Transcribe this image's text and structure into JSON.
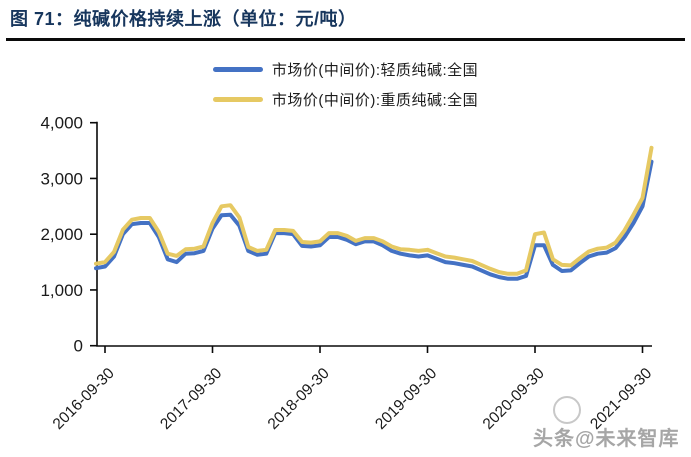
{
  "figure": {
    "title": "图 71：纯碱价格持续上涨（单位：元/吨）"
  },
  "legend": [
    {
      "label": "市场价(中间价):轻质纯碱:全国",
      "color": "#4472C4"
    },
    {
      "label": "市场价(中间价):重质纯碱:全国",
      "color": "#E6C963"
    }
  ],
  "watermark": {
    "text": "头条@未来智库"
  },
  "colors": {
    "title": "#17365d",
    "axis": "#0a0a0a",
    "tick_label": "#1a1a1a",
    "series_light": "#4472C4",
    "series_heavy": "#E6C963"
  },
  "chart_data": {
    "type": "line",
    "title": "纯碱价格持续上涨",
    "unit": "元/吨",
    "ylabel": "",
    "xlabel": "",
    "ylim": [
      0,
      4000
    ],
    "grid": false,
    "legend_position": "top",
    "x_tick_labels": [
      "2016-09-30",
      "2017-09-30",
      "2018-09-30",
      "2019-09-30",
      "2020-09-30",
      "2021-09-30"
    ],
    "y_ticks": [
      {
        "value": 0,
        "label": "0"
      },
      {
        "value": 1000,
        "label": "1,000"
      },
      {
        "value": 2000,
        "label": "2,000"
      },
      {
        "value": 3000,
        "label": "3,000"
      },
      {
        "value": 4000,
        "label": "4,000"
      }
    ],
    "x": [
      "2016-08",
      "2016-09",
      "2016-10",
      "2016-11",
      "2016-12",
      "2017-01",
      "2017-02",
      "2017-03",
      "2017-04",
      "2017-05",
      "2017-06",
      "2017-07",
      "2017-08",
      "2017-09",
      "2017-10",
      "2017-11",
      "2017-12",
      "2018-01",
      "2018-02",
      "2018-03",
      "2018-04",
      "2018-05",
      "2018-06",
      "2018-07",
      "2018-08",
      "2018-09",
      "2018-10",
      "2018-11",
      "2018-12",
      "2019-01",
      "2019-02",
      "2019-03",
      "2019-04",
      "2019-05",
      "2019-06",
      "2019-07",
      "2019-08",
      "2019-09",
      "2019-10",
      "2019-11",
      "2019-12",
      "2020-01",
      "2020-02",
      "2020-03",
      "2020-04",
      "2020-05",
      "2020-06",
      "2020-07",
      "2020-08",
      "2020-09",
      "2020-10",
      "2020-11",
      "2020-12",
      "2021-01",
      "2021-02",
      "2021-03",
      "2021-04",
      "2021-05",
      "2021-06",
      "2021-07",
      "2021-08",
      "2021-09",
      "2021-10"
    ],
    "series": [
      {
        "id": "light",
        "name": "市场价(中间价):轻质纯碱:全国",
        "color": "#4472C4",
        "values": [
          1390,
          1420,
          1600,
          2000,
          2180,
          2200,
          2200,
          1950,
          1550,
          1500,
          1650,
          1660,
          1700,
          2100,
          2340,
          2350,
          2150,
          1700,
          1630,
          1650,
          2020,
          2020,
          2000,
          1790,
          1780,
          1800,
          1950,
          1950,
          1900,
          1820,
          1870,
          1870,
          1800,
          1700,
          1650,
          1620,
          1600,
          1620,
          1560,
          1500,
          1480,
          1450,
          1420,
          1350,
          1280,
          1230,
          1200,
          1200,
          1250,
          1800,
          1800,
          1450,
          1340,
          1350,
          1480,
          1600,
          1650,
          1670,
          1750,
          1950,
          2200,
          2500,
          3300
        ]
      },
      {
        "id": "heavy",
        "name": "市场价(中间价):重质纯碱:全国",
        "color": "#E6C963",
        "values": [
          1470,
          1500,
          1680,
          2080,
          2260,
          2290,
          2290,
          2040,
          1650,
          1610,
          1730,
          1740,
          1780,
          2200,
          2500,
          2520,
          2300,
          1770,
          1700,
          1720,
          2075,
          2075,
          2060,
          1860,
          1850,
          1870,
          2020,
          2020,
          1970,
          1880,
          1930,
          1930,
          1870,
          1780,
          1730,
          1720,
          1700,
          1720,
          1660,
          1600,
          1580,
          1550,
          1520,
          1450,
          1380,
          1320,
          1290,
          1290,
          1350,
          2000,
          2030,
          1550,
          1450,
          1440,
          1570,
          1690,
          1740,
          1760,
          1850,
          2070,
          2350,
          2650,
          3550
        ]
      }
    ]
  }
}
